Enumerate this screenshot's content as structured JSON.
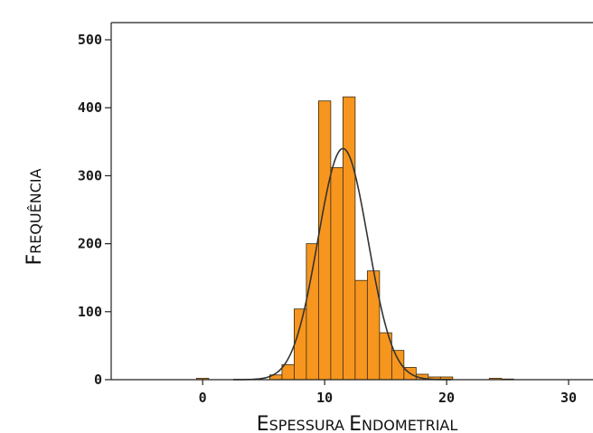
{
  "chart_data": {
    "type": "bar",
    "subtype": "histogram",
    "title": "",
    "xlabel": "Espessura Endometrial",
    "ylabel": "Frequência",
    "xlim": [
      -7.5,
      32
    ],
    "ylim": [
      0,
      500
    ],
    "xticks": [
      0,
      10,
      20,
      30
    ],
    "yticks": [
      0,
      100,
      200,
      300,
      400,
      500
    ],
    "bin_width": 1,
    "bins": [
      {
        "x0": -0.5,
        "x1": 0.5,
        "count": 2
      },
      {
        "x0": 5.5,
        "x1": 6.5,
        "count": 7
      },
      {
        "x0": 6.5,
        "x1": 7.5,
        "count": 22
      },
      {
        "x0": 7.5,
        "x1": 8.5,
        "count": 104
      },
      {
        "x0": 8.5,
        "x1": 9.5,
        "count": 200
      },
      {
        "x0": 9.5,
        "x1": 10.5,
        "count": 410
      },
      {
        "x0": 10.5,
        "x1": 11.5,
        "count": 312
      },
      {
        "x0": 11.5,
        "x1": 12.5,
        "count": 416
      },
      {
        "x0": 12.5,
        "x1": 13.5,
        "count": 146
      },
      {
        "x0": 13.5,
        "x1": 14.5,
        "count": 160
      },
      {
        "x0": 14.5,
        "x1": 15.5,
        "count": 69
      },
      {
        "x0": 15.5,
        "x1": 16.5,
        "count": 43
      },
      {
        "x0": 16.5,
        "x1": 17.5,
        "count": 18
      },
      {
        "x0": 17.5,
        "x1": 18.5,
        "count": 8
      },
      {
        "x0": 18.5,
        "x1": 19.5,
        "count": 4
      },
      {
        "x0": 19.5,
        "x1": 20.5,
        "count": 4
      },
      {
        "x0": 23.5,
        "x1": 24.5,
        "count": 2
      },
      {
        "x0": 24.5,
        "x1": 25.5,
        "count": 1
      }
    ],
    "normal_curve": {
      "mean": 11.5,
      "sd": 2.05,
      "peak": 340
    },
    "bar_color": "#f7961e",
    "bar_edge_color": "#3a2a10",
    "curve_color": "#333333",
    "grid": false,
    "legend": "none"
  }
}
